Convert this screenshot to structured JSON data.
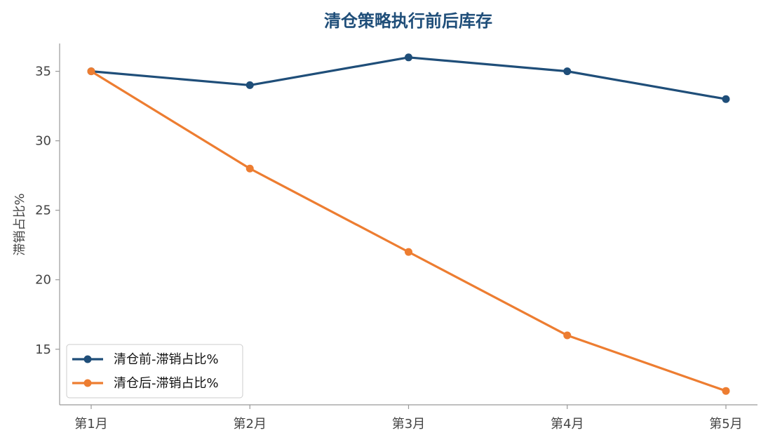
{
  "chart_data": {
    "type": "line",
    "title": "清仓策略执行前后库存",
    "xlabel": "",
    "ylabel": "滞销占比%",
    "categories": [
      "第1月",
      "第2月",
      "第3月",
      "第4月",
      "第5月"
    ],
    "ylim": [
      11,
      37
    ],
    "yticks": [
      15,
      20,
      25,
      30,
      35
    ],
    "grid": false,
    "legend_position": "lower-left",
    "series": [
      {
        "name": "清仓前-滞销占比%",
        "values": [
          35,
          34,
          36,
          35,
          33
        ],
        "color": "#1f4e79"
      },
      {
        "name": "清仓后-滞销占比%",
        "values": [
          35,
          28,
          22,
          16,
          12
        ],
        "color": "#ed7d31"
      }
    ]
  }
}
